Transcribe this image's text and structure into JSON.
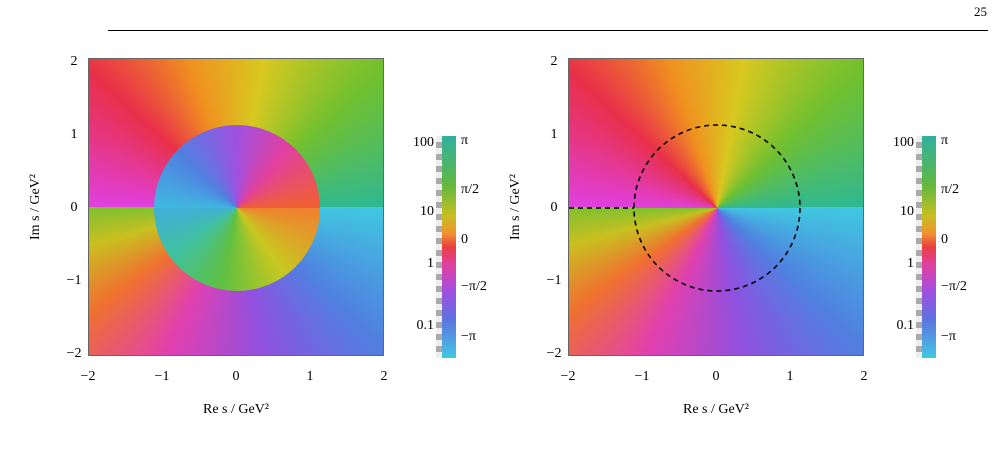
{
  "page_number": "25",
  "figures": [
    {
      "x_label": "Re s / GeV²",
      "y_label": "Im s / GeV²",
      "xticks": [
        "−2",
        "−1",
        "0",
        "1",
        "2"
      ],
      "yticks": [
        "2",
        "1",
        "0",
        "−1",
        "−2"
      ],
      "colorbar": {
        "magnitude_labels": [
          "100",
          "10",
          "1",
          "0.1"
        ],
        "phase_labels": [
          "π",
          "π/2",
          "0",
          "−π/2",
          "−π"
        ]
      }
    },
    {
      "x_label": "Re s / GeV²",
      "y_label": "Im s / GeV²",
      "xticks": [
        "−2",
        "−1",
        "0",
        "1",
        "2"
      ],
      "yticks": [
        "2",
        "1",
        "0",
        "−1",
        "−2"
      ],
      "colorbar": {
        "magnitude_labels": [
          "100",
          "10",
          "1",
          "0.1"
        ],
        "phase_labels": [
          "π",
          "π/2",
          "0",
          "−π/2",
          "−π"
        ]
      }
    }
  ]
}
